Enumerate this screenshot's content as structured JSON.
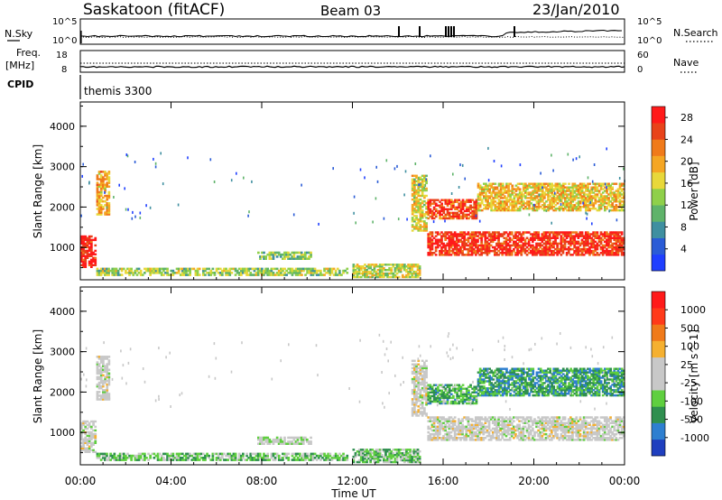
{
  "header": {
    "station": "Saskatoon (fitACF)",
    "beam": "Beam 03",
    "date": "23/Jan/2010"
  },
  "status_panel": {
    "nsky_label": "N.Sky",
    "nsky_axis": [
      "10^5",
      "10^0"
    ],
    "nsearch_label": "N.Search",
    "nsearch_axis": [
      "10^5",
      "10^0"
    ],
    "freq_label": "Freq.",
    "freq_unit": "[MHz]",
    "freq_axis": [
      "18",
      "8"
    ],
    "nave_label": "Nave",
    "nave_axis": [
      "60",
      "0"
    ],
    "cpid_label": "CPID",
    "cpid_value": "themis 3300"
  },
  "colors": {
    "power_scale": [
      "#1f3fff",
      "#2a5bd6",
      "#3f8fa0",
      "#5fb36a",
      "#8fd04a",
      "#e8d83a",
      "#f5a623",
      "#f07a1a",
      "#e8431a",
      "#ff1a1a"
    ],
    "velocity_scale": [
      "#1f3fbf",
      "#2e7fd0",
      "#2f8f4f",
      "#5fcf3f",
      "#c8c8c8",
      "#c8c8c8",
      "#f5b030",
      "#f07a1a",
      "#ff3a1a",
      "#ff1a1a"
    ]
  },
  "chart_data": [
    {
      "type": "heatmap",
      "title": "Power",
      "xlabel": "Time UT",
      "ylabel": "Slant Range [km]",
      "x_ticks": [
        "00:00",
        "04:00",
        "08:00",
        "12:00",
        "16:00",
        "20:00",
        "00:00"
      ],
      "y_ticks": [
        "1000",
        "2000",
        "3000",
        "4000"
      ],
      "ylim": [
        200,
        4600
      ],
      "colorbar": {
        "label": "Power [dB]",
        "ticks": [
          "4",
          "8",
          "12",
          "16",
          "20",
          "24",
          "28"
        ],
        "range": [
          0,
          30
        ]
      },
      "features": [
        {
          "t0": 0.0,
          "t1": 0.7,
          "r0": 500,
          "r1": 1300,
          "level": 0.95
        },
        {
          "t0": 0.7,
          "t1": 1.3,
          "r0": 1800,
          "r1": 2900,
          "level": 0.65
        },
        {
          "t0": 0.7,
          "t1": 11.8,
          "r0": 300,
          "r1": 500,
          "level": 0.45
        },
        {
          "t0": 7.8,
          "t1": 10.2,
          "r0": 700,
          "r1": 900,
          "level": 0.4
        },
        {
          "t0": 14.6,
          "t1": 15.3,
          "r0": 1400,
          "r1": 2800,
          "level": 0.55
        },
        {
          "t0": 15.3,
          "t1": 24.0,
          "r0": 800,
          "r1": 1400,
          "level": 0.9
        },
        {
          "t0": 15.3,
          "t1": 17.5,
          "r0": 1700,
          "r1": 2200,
          "level": 0.85
        },
        {
          "t0": 17.5,
          "t1": 24.0,
          "r0": 1900,
          "r1": 2600,
          "level": 0.6
        },
        {
          "t0": 12.0,
          "t1": 15.0,
          "r0": 250,
          "r1": 600,
          "level": 0.5
        }
      ]
    },
    {
      "type": "heatmap",
      "title": "Velocity",
      "xlabel": "Time UT",
      "ylabel": "Slant Range [km]",
      "x_ticks": [
        "00:00",
        "04:00",
        "08:00",
        "12:00",
        "16:00",
        "20:00",
        "00:00"
      ],
      "y_ticks": [
        "1000",
        "2000",
        "3000",
        "4000"
      ],
      "ylim": [
        200,
        4600
      ],
      "colorbar": {
        "label": "Velocity [m s^-1]",
        "ticks": [
          "1000",
          "500",
          "100",
          "25",
          "-25",
          "-100",
          "-500",
          "-1000"
        ],
        "range": [
          -1000,
          1000
        ]
      },
      "features": [
        {
          "t0": 0.0,
          "t1": 0.7,
          "r0": 500,
          "r1": 1300,
          "level": 0.5
        },
        {
          "t0": 0.7,
          "t1": 1.3,
          "r0": 1800,
          "r1": 2900,
          "level": 0.5
        },
        {
          "t0": 0.7,
          "t1": 11.8,
          "r0": 300,
          "r1": 500,
          "level": 0.35
        },
        {
          "t0": 7.8,
          "t1": 10.2,
          "r0": 700,
          "r1": 900,
          "level": 0.45
        },
        {
          "t0": 14.6,
          "t1": 15.3,
          "r0": 1400,
          "r1": 2800,
          "level": 0.5
        },
        {
          "t0": 15.3,
          "t1": 24.0,
          "r0": 800,
          "r1": 1400,
          "level": 0.5
        },
        {
          "t0": 15.3,
          "t1": 17.5,
          "r0": 1700,
          "r1": 2200,
          "level": 0.3
        },
        {
          "t0": 17.5,
          "t1": 24.0,
          "r0": 1900,
          "r1": 2600,
          "level": 0.25
        },
        {
          "t0": 12.0,
          "t1": 15.0,
          "r0": 250,
          "r1": 600,
          "level": 0.35
        }
      ]
    }
  ]
}
